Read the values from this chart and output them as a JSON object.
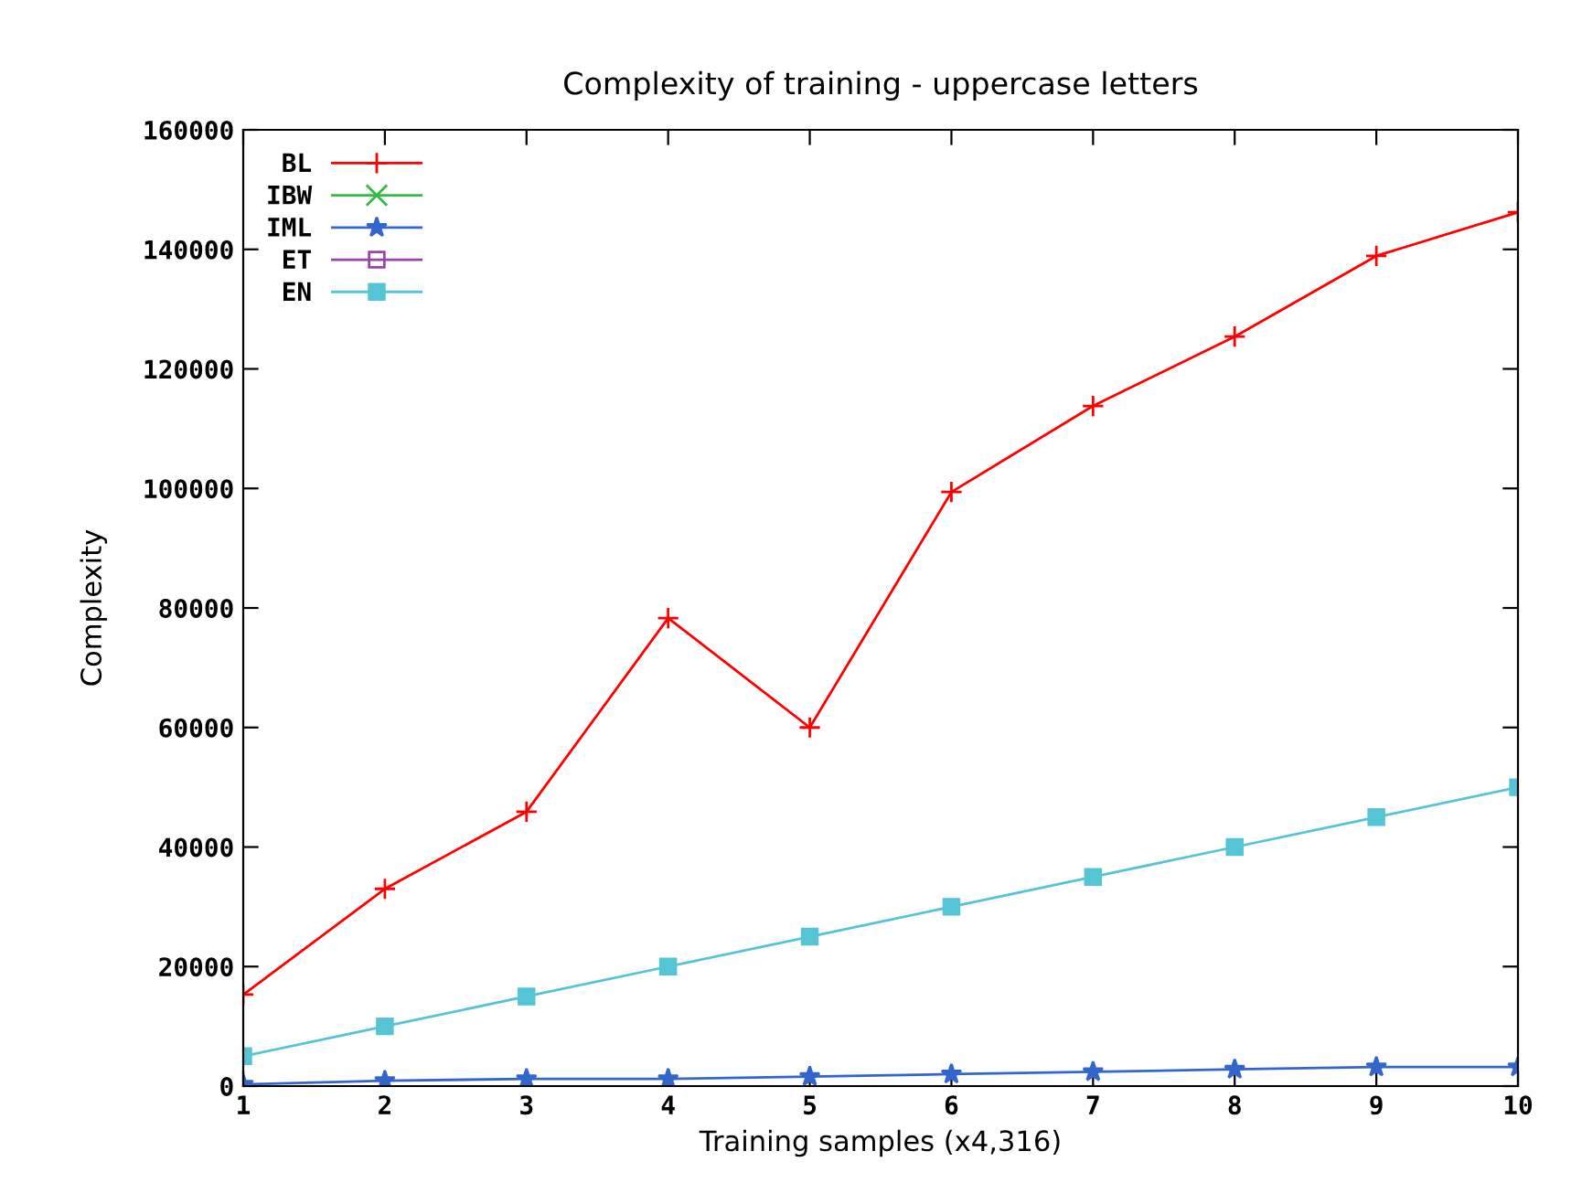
{
  "chart_data": {
    "type": "line",
    "title": "Complexity of training - uppercase letters",
    "xlabel": "Training samples (x4,316)",
    "ylabel": "Complexity",
    "x": [
      1,
      2,
      3,
      4,
      5,
      6,
      7,
      8,
      9,
      10
    ],
    "series": [
      {
        "name": "BL",
        "color": "#ff0000",
        "marker": "plus",
        "values": [
          15300,
          33000,
          45900,
          78300,
          60000,
          99400,
          113800,
          125400,
          138900,
          146200
        ]
      },
      {
        "name": "IBW",
        "color": "#33bb44",
        "marker": "x",
        "values": [
          null,
          null,
          null,
          null,
          null,
          null,
          null,
          null,
          null,
          null
        ]
      },
      {
        "name": "IML",
        "color": "#3366cc",
        "marker": "star",
        "values": [
          300,
          900,
          1200,
          1200,
          1600,
          2000,
          2400,
          2800,
          3200,
          3200
        ]
      },
      {
        "name": "ET",
        "color": "#9944aa",
        "marker": "open_square",
        "values": [
          null,
          null,
          null,
          null,
          null,
          null,
          null,
          null,
          null,
          null
        ]
      },
      {
        "name": "EN",
        "color": "#55c4d4",
        "marker": "square",
        "values": [
          5000,
          10000,
          15000,
          20000,
          25000,
          30000,
          35000,
          40000,
          45000,
          50000
        ]
      }
    ],
    "xlim": [
      1,
      10
    ],
    "xticks": [
      1,
      2,
      3,
      4,
      5,
      6,
      7,
      8,
      9,
      10
    ],
    "ylim": [
      0,
      160000
    ],
    "yticks": [
      0,
      20000,
      40000,
      60000,
      80000,
      100000,
      120000,
      140000,
      160000
    ],
    "grid": false,
    "legend": "top left"
  }
}
